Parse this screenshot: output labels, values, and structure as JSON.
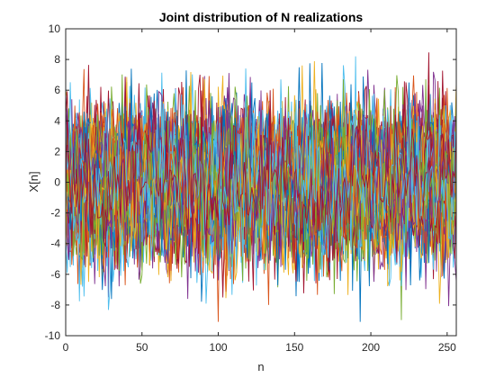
{
  "chart_data": {
    "type": "line",
    "title": "Joint distribution of N realizations",
    "xlabel": "n",
    "ylabel": "X[n]",
    "xlim": [
      0,
      256
    ],
    "ylim": [
      -10,
      10
    ],
    "x_ticks": [
      0,
      50,
      100,
      150,
      200,
      250
    ],
    "y_ticks": [
      -10,
      -8,
      -6,
      -4,
      -2,
      0,
      2,
      4,
      6,
      8,
      10
    ],
    "grid": false,
    "legend": "none",
    "n_samples": 257,
    "n_realizations": 70,
    "series_std": 2.3,
    "observed_max": 9.2,
    "observed_min": -9.1,
    "colors": [
      "#0072BD",
      "#D95319",
      "#EDB120",
      "#7E2F8E",
      "#77AC30",
      "#4DBEEE",
      "#A2142F"
    ],
    "axes_color": "#262626",
    "title_color": "#000000"
  }
}
